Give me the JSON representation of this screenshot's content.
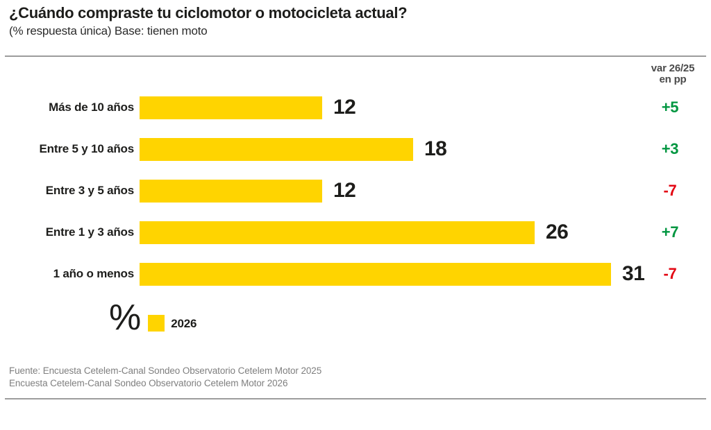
{
  "header": {
    "title": "¿Cuándo compraste tu ciclomotor o motocicleta actual?",
    "subtitle": "(% respuesta única) Base: tienen moto"
  },
  "var_column": {
    "header_line1": "var 26/25",
    "header_line2": "en pp"
  },
  "legend": {
    "unit": "%",
    "series_label": "2026"
  },
  "footer": {
    "line1": "Fuente: Encuesta Cetelem-Canal Sondeo Observatorio Cetelem Motor 2025",
    "line2": "Encuesta Cetelem-Canal Sondeo Observatorio Cetelem Motor 2026"
  },
  "colors": {
    "bar": "#FFD400",
    "positive": "#009640",
    "negative": "#E30613",
    "rule": "#9C9C9C"
  },
  "chart_data": {
    "type": "bar",
    "orientation": "horizontal",
    "title": "¿Cuándo compraste tu ciclomotor o motocicleta actual?",
    "subtitle": "(% respuesta única) Base: tienen moto",
    "unit": "%",
    "legend_entries": [
      "2026"
    ],
    "legend_position": "bottom-left",
    "grid": false,
    "xlim": [
      0,
      31
    ],
    "categories": [
      "Más de 10 años",
      "Entre 5 y 10 años",
      "Entre 3 y 5 años",
      "Entre 1 y 3 años",
      "1 año o menos"
    ],
    "values": [
      12,
      18,
      12,
      26,
      31
    ],
    "var_26_25_pp": [
      "+5",
      "+3",
      "-7",
      "+7",
      "-7"
    ]
  }
}
